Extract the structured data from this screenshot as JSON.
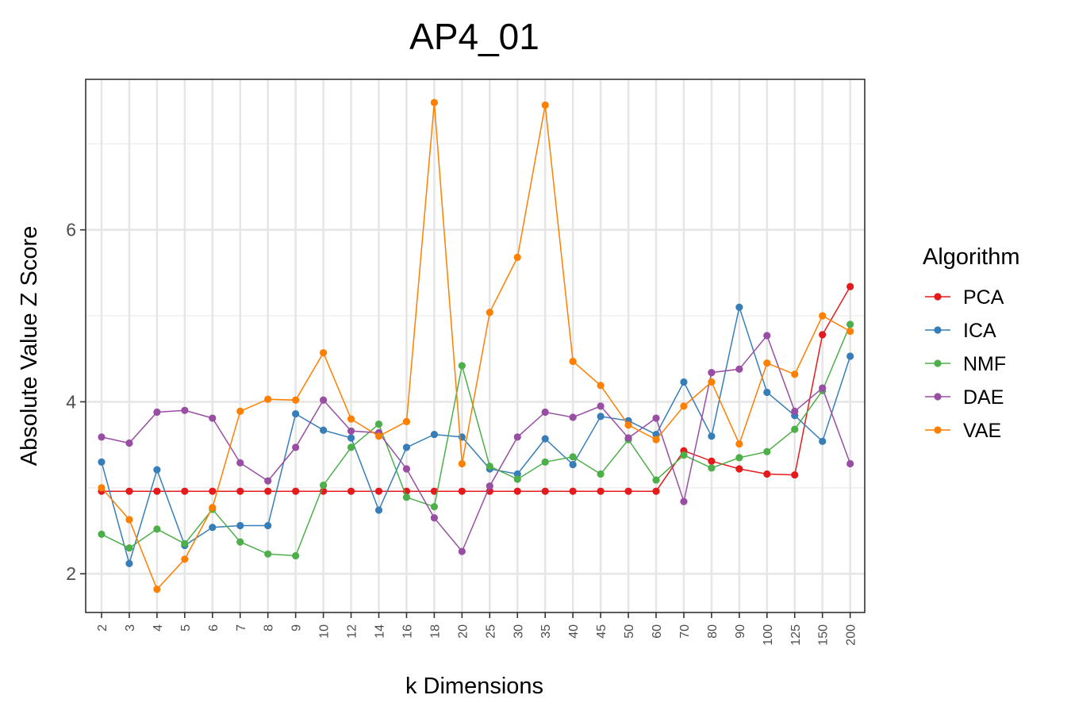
{
  "chart_data": {
    "type": "line",
    "title": "AP4_01",
    "xlabel": "k Dimensions",
    "ylabel": "Absolute Value Z Score",
    "categories": [
      "2",
      "3",
      "4",
      "5",
      "6",
      "7",
      "8",
      "9",
      "10",
      "12",
      "14",
      "16",
      "18",
      "20",
      "25",
      "30",
      "35",
      "40",
      "45",
      "50",
      "60",
      "70",
      "80",
      "90",
      "100",
      "125",
      "150",
      "200"
    ],
    "y_ticks": [
      "2",
      "4",
      "6"
    ],
    "ylim": [
      1.55,
      7.75
    ],
    "grid": true,
    "legend": {
      "title": "Algorithm",
      "position": "right",
      "entries": [
        "PCA",
        "ICA",
        "NMF",
        "DAE",
        "VAE"
      ]
    },
    "series": [
      {
        "name": "PCA",
        "color": "#e41a1c",
        "values": [
          2.96,
          2.96,
          2.96,
          2.96,
          2.96,
          2.96,
          2.96,
          2.96,
          2.96,
          2.96,
          2.96,
          2.96,
          2.96,
          2.96,
          2.96,
          2.96,
          2.96,
          2.96,
          2.96,
          2.96,
          2.96,
          3.43,
          3.31,
          3.22,
          3.16,
          3.15,
          4.78,
          5.34
        ]
      },
      {
        "name": "ICA",
        "color": "#377eb8",
        "values": [
          3.3,
          2.12,
          3.21,
          2.33,
          2.54,
          2.56,
          2.56,
          3.86,
          3.67,
          3.58,
          2.74,
          3.47,
          3.62,
          3.59,
          3.22,
          3.16,
          3.57,
          3.27,
          3.83,
          3.78,
          3.62,
          4.23,
          3.6,
          5.1,
          4.11,
          3.84,
          3.54,
          4.53
        ]
      },
      {
        "name": "NMF",
        "color": "#4daf4a",
        "values": [
          2.46,
          2.3,
          2.52,
          2.35,
          2.75,
          2.37,
          2.23,
          2.21,
          3.03,
          3.47,
          3.74,
          2.89,
          2.78,
          4.42,
          3.25,
          3.1,
          3.3,
          3.36,
          3.16,
          3.56,
          3.09,
          3.38,
          3.23,
          3.35,
          3.42,
          3.68,
          4.13,
          4.9
        ]
      },
      {
        "name": "DAE",
        "color": "#984ea3",
        "values": [
          3.59,
          3.52,
          3.88,
          3.9,
          3.81,
          3.29,
          3.08,
          3.47,
          4.02,
          3.66,
          3.64,
          3.22,
          2.65,
          2.26,
          3.02,
          3.59,
          3.88,
          3.82,
          3.95,
          3.58,
          3.81,
          2.84,
          4.34,
          4.38,
          4.77,
          3.89,
          4.16,
          3.28
        ]
      },
      {
        "name": "VAE",
        "color": "#ff7f00",
        "values": [
          3.0,
          2.63,
          1.82,
          2.17,
          2.77,
          3.89,
          4.03,
          4.02,
          4.57,
          3.8,
          3.6,
          3.77,
          7.48,
          3.28,
          5.04,
          5.68,
          7.45,
          4.47,
          4.19,
          3.73,
          3.56,
          3.95,
          4.23,
          3.51,
          4.45,
          4.32,
          5.0,
          4.82
        ]
      }
    ]
  }
}
